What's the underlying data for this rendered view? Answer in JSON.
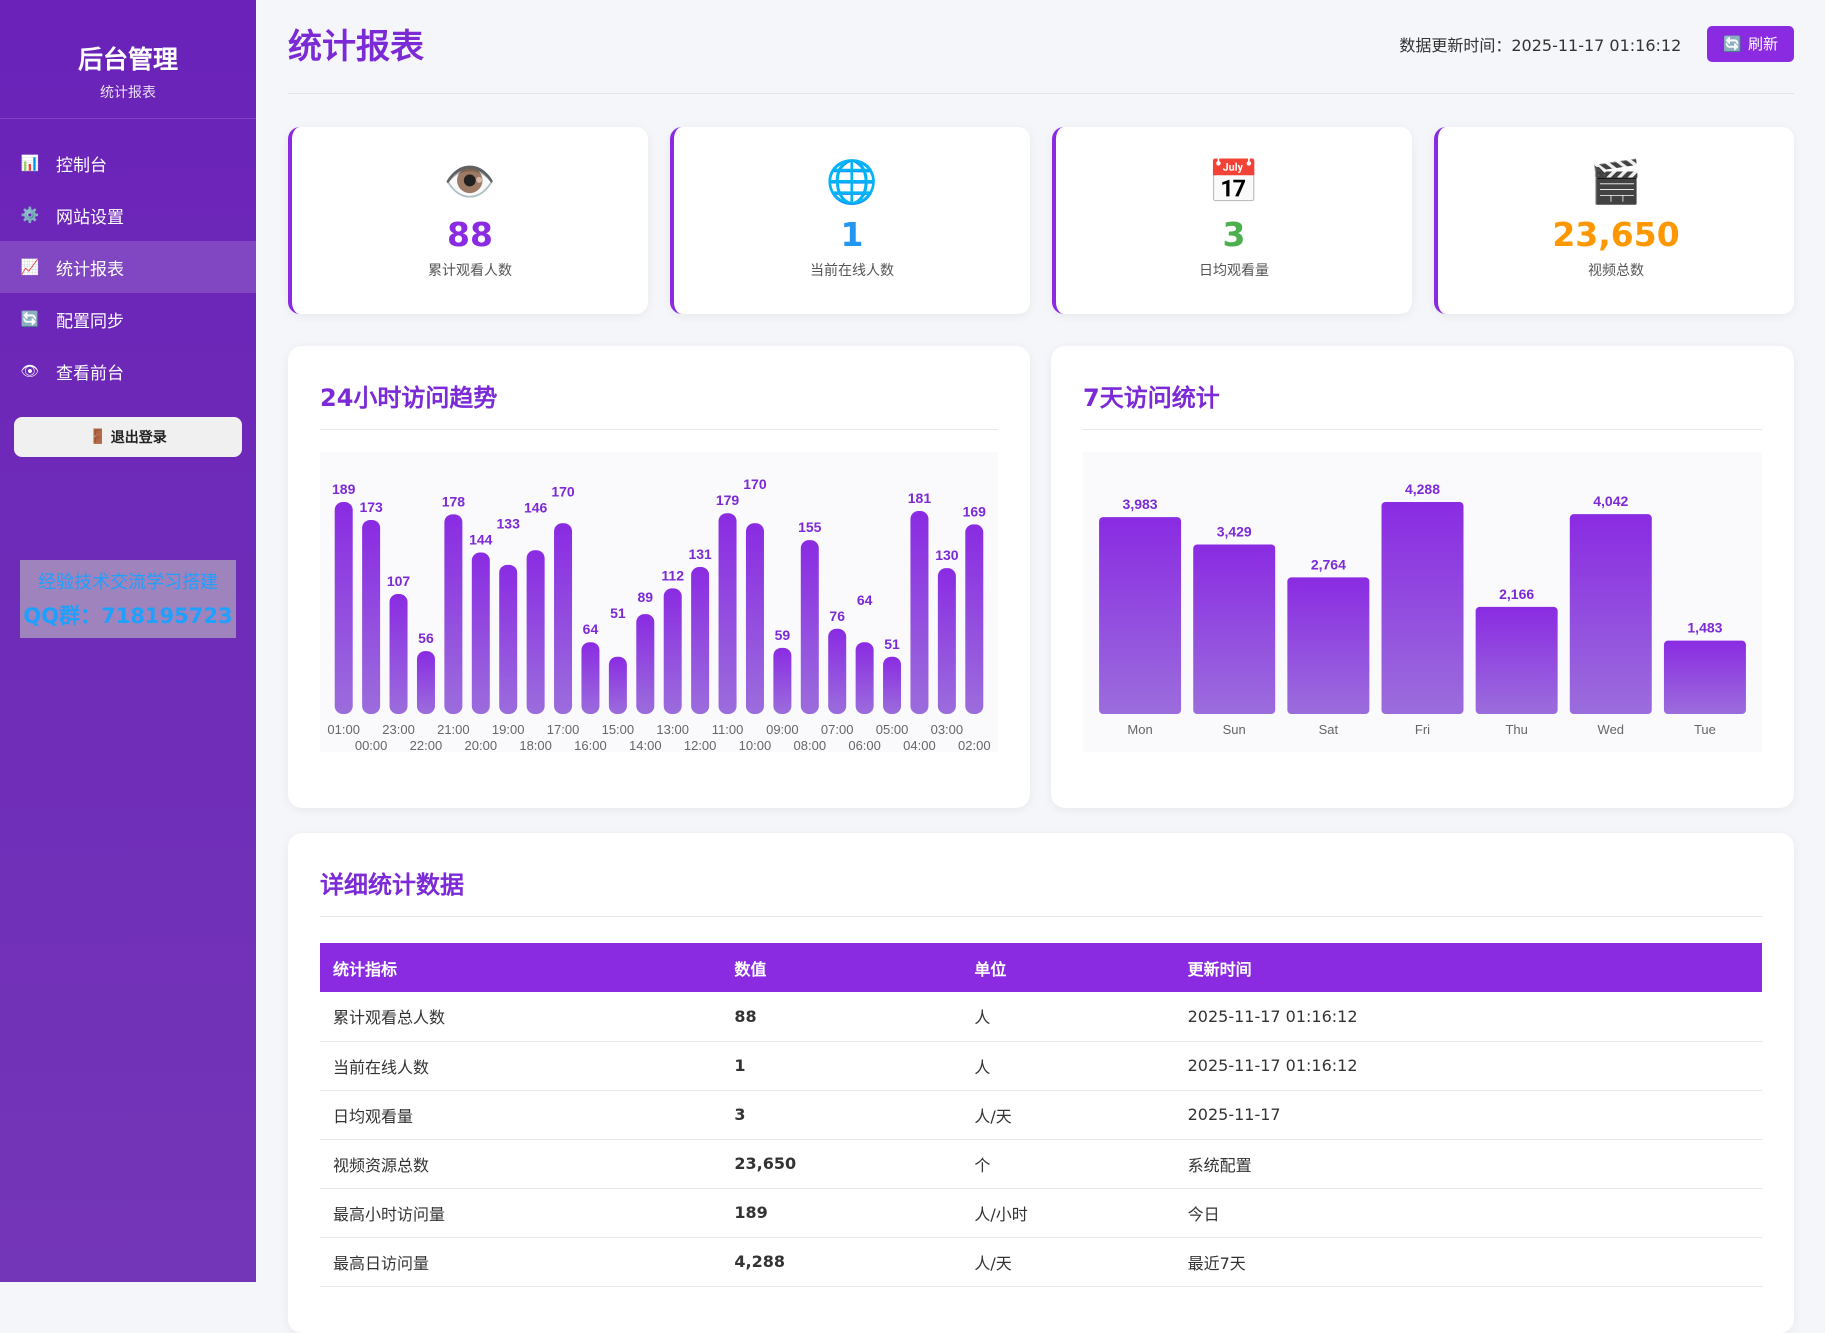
{
  "sidebar": {
    "title": "后台管理",
    "subtitle": "统计报表",
    "items": [
      {
        "label": "控制台",
        "icon": "📊"
      },
      {
        "label": "网站设置",
        "icon": "⚙️"
      },
      {
        "label": "统计报表",
        "icon": "📈",
        "active": true
      },
      {
        "label": "配置同步",
        "icon": "🔄"
      },
      {
        "label": "查看前台",
        "icon": "👁"
      }
    ],
    "logout": "退出登录",
    "logout_icon": "🚪"
  },
  "header": {
    "title": "统计报表",
    "update_label": "数据更新时间：",
    "update_time": "2025-11-17 01:16:12",
    "refresh": "刷新",
    "refresh_icon": "🔄"
  },
  "cards": [
    {
      "icon": "👁️",
      "value": "88",
      "label": "累计观看人数",
      "color": "#8a2be2"
    },
    {
      "icon": "🌐",
      "value": "1",
      "label": "当前在线人数",
      "color": "#2196f3"
    },
    {
      "icon": "📅",
      "value": "3",
      "label": "日均观看量",
      "color": "#4caf50"
    },
    {
      "icon": "🎬",
      "value": "23,650",
      "label": "视频总数",
      "color": "#ff9800"
    }
  ],
  "chart_data": [
    {
      "type": "bar",
      "title": "24小时访问趋势",
      "categories": [
        "01:00",
        "00:00",
        "23:00",
        "22:00",
        "21:00",
        "20:00",
        "19:00",
        "18:00",
        "17:00",
        "16:00",
        "15:00",
        "14:00",
        "13:00",
        "12:00",
        "11:00",
        "10:00",
        "09:00",
        "08:00",
        "07:00",
        "06:00",
        "05:00",
        "04:00",
        "03:00",
        "02:00"
      ],
      "values": [
        189,
        173,
        107,
        56,
        178,
        144,
        133,
        146,
        170,
        64,
        51,
        89,
        112,
        131,
        179,
        170,
        59,
        155,
        76,
        64,
        51,
        181,
        130,
        169
      ],
      "color": "#8a2be2"
    },
    {
      "type": "bar",
      "title": "7天访问统计",
      "categories": [
        "Mon",
        "Sun",
        "Sat",
        "Fri",
        "Thu",
        "Wed",
        "Tue"
      ],
      "values": [
        3983,
        3429,
        2764,
        4288,
        2166,
        4042,
        1483
      ],
      "labels": [
        "3,983",
        "3,429",
        "2,764",
        "4,288",
        "2,166",
        "4,042",
        "1,483"
      ],
      "color": "#8a2be2"
    }
  ],
  "table": {
    "title": "详细统计数据",
    "headers": [
      "统计指标",
      "数值",
      "单位",
      "更新时间"
    ],
    "rows": [
      [
        "累计观看总人数",
        "88",
        "人",
        "2025-11-17 01:16:12"
      ],
      [
        "当前在线人数",
        "1",
        "人",
        "2025-11-17 01:16:12"
      ],
      [
        "日均观看量",
        "3",
        "人/天",
        "2025-11-17"
      ],
      [
        "视频资源总数",
        "23,650",
        "个",
        "系统配置"
      ],
      [
        "最高小时访问量",
        "189",
        "人/小时",
        "今日"
      ],
      [
        "最高日访问量",
        "4,288",
        "人/天",
        "最近7天"
      ]
    ]
  },
  "watermark": {
    "line1": "经验技术交流学习搭建",
    "line2": "QQ群：718195723"
  }
}
